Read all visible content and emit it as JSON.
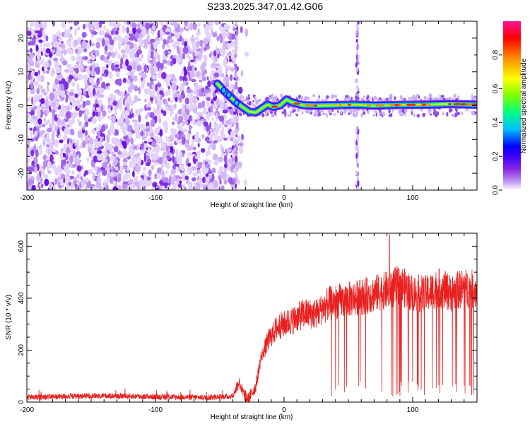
{
  "title": "S233.2025.347.01.42.G06",
  "chart_data": [
    {
      "type": "heatmap",
      "xlabel": "Height of straight line (km)",
      "ylabel": "Frequency (Hz)",
      "xlim": [
        -200,
        150
      ],
      "ylim": [
        -25,
        25
      ],
      "x_ticks": [
        -200,
        -100,
        0,
        100
      ],
      "y_ticks": [
        20,
        10,
        0,
        -10,
        -20
      ],
      "grid": false,
      "colorbar": {
        "label": "Normalized spectral amplitude",
        "range": [
          0,
          1
        ],
        "ticks": [
          "0.0",
          "0.2",
          "0.4",
          "0.6",
          "0.8"
        ],
        "colormap": [
          "#ffffff",
          "#c9a9f5",
          "#8a2be2",
          "#3d00ff",
          "#0000ff",
          "#00bfff",
          "#00ff7f",
          "#7fff00",
          "#ffff00",
          "#ff8c00",
          "#ff0000",
          "#ff1493"
        ]
      },
      "signal_track": [
        {
          "x": -52,
          "f": 6.5
        },
        {
          "x": -47,
          "f": 4.5
        },
        {
          "x": -43,
          "f": 3.0
        },
        {
          "x": -38,
          "f": 1.2
        },
        {
          "x": -32,
          "f": -0.5
        },
        {
          "x": -27,
          "f": -1.8
        },
        {
          "x": -22,
          "f": -2.0
        },
        {
          "x": -18,
          "f": -1.0
        },
        {
          "x": -13,
          "f": 0.3
        },
        {
          "x": -8,
          "f": -0.4
        },
        {
          "x": -3,
          "f": 0.1
        },
        {
          "x": 2,
          "f": 1.8
        },
        {
          "x": 6,
          "f": 1.0
        },
        {
          "x": 10,
          "f": 0.6
        },
        {
          "x": 15,
          "f": 0.1
        },
        {
          "x": 25,
          "f": 0.0
        },
        {
          "x": 40,
          "f": 0.1
        },
        {
          "x": 55,
          "f": 0.3
        },
        {
          "x": 70,
          "f": 0.0
        },
        {
          "x": 90,
          "f": 0.2
        },
        {
          "x": 110,
          "f": 0.3
        },
        {
          "x": 130,
          "f": 0.5
        },
        {
          "x": 150,
          "f": 0.3
        }
      ],
      "vertical_features_x": [
        -37,
        57
      ]
    },
    {
      "type": "line",
      "xlabel": "Height of straight line (km)",
      "ylabel": "SNR (10 * v/v)",
      "xlim": [
        -200,
        150
      ],
      "ylim": [
        0,
        650
      ],
      "x_ticks": [
        -200,
        -100,
        0,
        100
      ],
      "y_ticks": [
        0,
        200,
        400,
        600
      ],
      "color": "#e8201e",
      "envelope": [
        {
          "x": -200,
          "y": 18
        },
        {
          "x": -170,
          "y": 22
        },
        {
          "x": -140,
          "y": 25
        },
        {
          "x": -100,
          "y": 20
        },
        {
          "x": -60,
          "y": 18
        },
        {
          "x": -40,
          "y": 22
        },
        {
          "x": -35,
          "y": 80
        },
        {
          "x": -32,
          "y": 35
        },
        {
          "x": -28,
          "y": 10
        },
        {
          "x": -22,
          "y": 60
        },
        {
          "x": -18,
          "y": 170
        },
        {
          "x": -12,
          "y": 240
        },
        {
          "x": -5,
          "y": 290
        },
        {
          "x": 5,
          "y": 310
        },
        {
          "x": 15,
          "y": 340
        },
        {
          "x": 25,
          "y": 340
        },
        {
          "x": 35,
          "y": 380
        },
        {
          "x": 45,
          "y": 390
        },
        {
          "x": 55,
          "y": 400
        },
        {
          "x": 65,
          "y": 410
        },
        {
          "x": 80,
          "y": 430
        },
        {
          "x": 90,
          "y": 450
        },
        {
          "x": 100,
          "y": 420
        },
        {
          "x": 110,
          "y": 415
        },
        {
          "x": 120,
          "y": 440
        },
        {
          "x": 130,
          "y": 420
        },
        {
          "x": 140,
          "y": 440
        },
        {
          "x": 150,
          "y": 430
        }
      ],
      "peak": {
        "x": 82,
        "y": 645
      }
    }
  ]
}
